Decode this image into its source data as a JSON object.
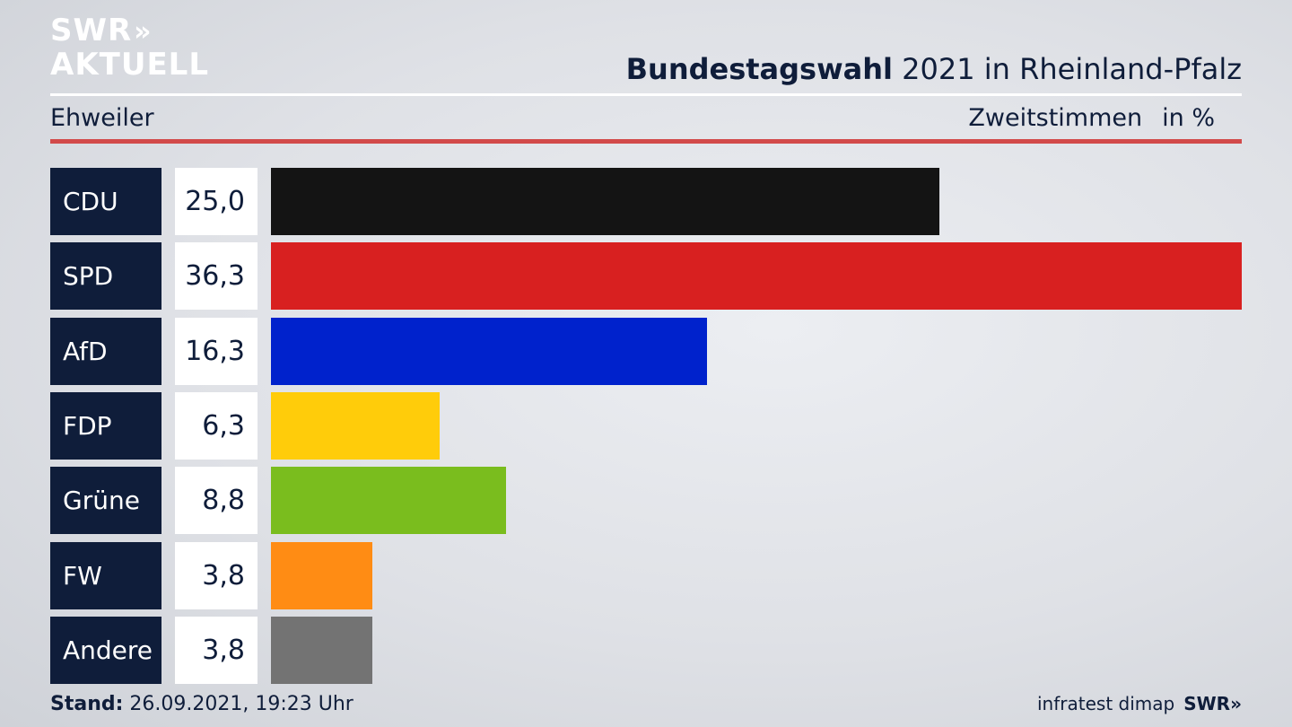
{
  "brand": {
    "logo_line1": "SWR",
    "logo_chevrons": "»",
    "logo_line2": "AKTUELL"
  },
  "header": {
    "title_bold": "Bundestagswahl",
    "title_rest": " 2021 in Rheinland-Pfalz",
    "location": "Ehweiler",
    "vote_type": "Zweitstimmen",
    "unit": "in %"
  },
  "chart_data": {
    "type": "bar",
    "orientation": "horizontal",
    "categories": [
      "CDU",
      "SPD",
      "AfD",
      "FDP",
      "Grüne",
      "FW",
      "Andere"
    ],
    "values": [
      25.0,
      36.3,
      16.3,
      6.3,
      8.8,
      3.8,
      3.8
    ],
    "value_labels": [
      "25,0",
      "36,3",
      "16,3",
      "6,3",
      "8,8",
      "3,8",
      "3,8"
    ],
    "colors": [
      "#141414",
      "#d82020",
      "#0022cc",
      "#ffcc0a",
      "#7abd1e",
      "#ff8c14",
      "#737373"
    ],
    "xlim": [
      0,
      36.3
    ],
    "grid": false,
    "legend": "none"
  },
  "footer": {
    "stand_label": "Stand:",
    "stand_value": " 26.09.2021, 19:23 Uhr",
    "source": "infratest dimap",
    "source_brand": "SWR»"
  }
}
